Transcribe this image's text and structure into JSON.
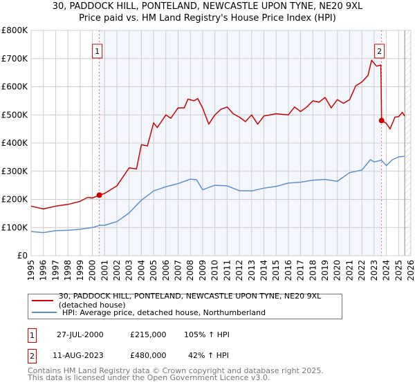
{
  "title": "30, PADDOCK HILL, PONTELAND, NEWCASTLE UPON TYNE, NE20 9XL",
  "subtitle": "Price paid vs. HM Land Registry's House Price Index (HPI)",
  "chart_data": {
    "type": "line",
    "xlim": [
      1995,
      2026
    ],
    "ylim": [
      0,
      800000
    ],
    "x_ticks": [
      "1995",
      "1996",
      "1997",
      "1998",
      "1999",
      "2000",
      "2001",
      "2002",
      "2003",
      "2004",
      "2005",
      "2006",
      "2007",
      "2008",
      "2009",
      "2010",
      "2011",
      "2012",
      "2013",
      "2014",
      "2015",
      "2016",
      "2017",
      "2018",
      "2019",
      "2020",
      "2021",
      "2022",
      "2023",
      "2024",
      "2025",
      "2026"
    ],
    "y_ticks": [
      {
        "v": 0,
        "label": "£0"
      },
      {
        "v": 100000,
        "label": "£100K"
      },
      {
        "v": 200000,
        "label": "£200K"
      },
      {
        "v": 300000,
        "label": "£300K"
      },
      {
        "v": 400000,
        "label": "£400K"
      },
      {
        "v": 500000,
        "label": "£500K"
      },
      {
        "v": 600000,
        "label": "£600K"
      },
      {
        "v": 700000,
        "label": "£700K"
      },
      {
        "v": 800000,
        "label": "£800K"
      }
    ],
    "grid": true,
    "shaded_range": [
      2000.57,
      2023.61
    ],
    "hatched_from": 2025.5,
    "series": [
      {
        "name": "30, PADDOCK HILL, PONTELAND, NEWCASTLE UPON TYNE, NE20 9XL (detached house)",
        "color": "#cc0000",
        "x": [
          1995,
          1996,
          1997,
          1998,
          1999,
          1999.6,
          2000,
          2000.57,
          2001,
          2002,
          2003,
          2003.6,
          2004,
          2004.5,
          2005,
          2005.3,
          2006,
          2006.4,
          2007,
          2007.5,
          2007.8,
          2008.3,
          2008.6,
          2009,
          2009.5,
          2010,
          2010.5,
          2011,
          2011.5,
          2012,
          2012.5,
          2013,
          2013.5,
          2014,
          2015,
          2016,
          2016.5,
          2017,
          2017.5,
          2018,
          2018.5,
          2019,
          2019.5,
          2020,
          2020.5,
          2021,
          2021.5,
          2022,
          2022.5,
          2022.8,
          2023.2,
          2023.55,
          2023.61,
          2024,
          2024.3,
          2024.7,
          2025,
          2025.3,
          2025.5
        ],
        "y": [
          176000,
          166000,
          176000,
          182000,
          193000,
          207000,
          205000,
          215000,
          221000,
          248000,
          312000,
          308000,
          394000,
          390000,
          472000,
          455000,
          500000,
          488000,
          525000,
          525000,
          556000,
          550000,
          558000,
          525000,
          467000,
          500000,
          520000,
          528000,
          504000,
          492000,
          476000,
          500000,
          467000,
          496000,
          504000,
          500000,
          528000,
          512000,
          528000,
          550000,
          545000,
          562000,
          525000,
          554000,
          541000,
          554000,
          603000,
          617000,
          640000,
          694000,
          673000,
          677000,
          480000,
          470000,
          450000,
          492000,
          494000,
          509000,
          496000
        ]
      },
      {
        "name": "HPI: Average price, detached house, Northumberland",
        "color": "#5b8fd0",
        "x": [
          1995,
          1996,
          1997,
          1998,
          1999,
          2000,
          2000.6,
          2001,
          2002,
          2003,
          2004,
          2005,
          2006,
          2007,
          2008,
          2008.5,
          2009,
          2010,
          2011,
          2012,
          2013,
          2014,
          2015,
          2016,
          2017,
          2018,
          2019,
          2020,
          2021,
          2022,
          2022.7,
          2023,
          2023.6,
          2024,
          2024.5,
          2025,
          2025.5
        ],
        "y": [
          86000,
          82000,
          89000,
          90000,
          94000,
          100000,
          108000,
          108000,
          121000,
          152000,
          197000,
          230000,
          245000,
          256000,
          272000,
          270000,
          234000,
          250000,
          248000,
          231000,
          230000,
          240000,
          246000,
          258000,
          261000,
          268000,
          271000,
          264000,
          295000,
          304000,
          341000,
          333000,
          339000,
          320000,
          341000,
          351000,
          353000
        ]
      }
    ],
    "annotations": [
      {
        "label": "1",
        "x": 2000.57,
        "y": 215000
      },
      {
        "label": "2",
        "x": 2023.61,
        "y": 480000
      }
    ]
  },
  "legend": {
    "items": [
      "30, PADDOCK HILL, PONTELAND, NEWCASTLE UPON TYNE, NE20 9XL (detached house)",
      "HPI: Average price, detached house, Northumberland"
    ]
  },
  "transactions": [
    {
      "num": "1",
      "date": "27-JUL-2000",
      "price": "£215,000",
      "hpi": "105% ↑ HPI"
    },
    {
      "num": "2",
      "date": "11-AUG-2023",
      "price": "£480,000",
      "hpi": "42% ↑ HPI"
    }
  ],
  "footer": [
    "Contains HM Land Registry data © Crown copyright and database right 2025.",
    "This data is licensed under the Open Government Licence v3.0."
  ]
}
